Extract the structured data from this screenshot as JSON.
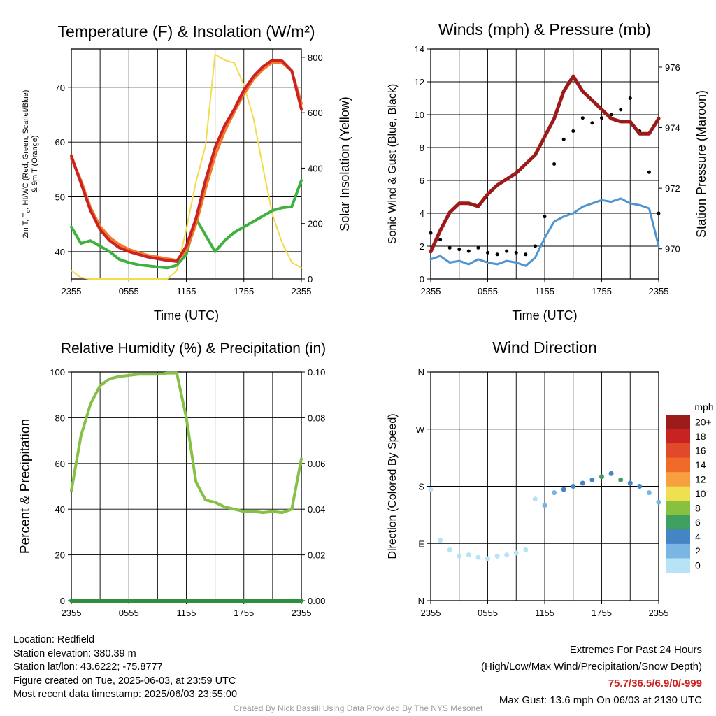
{
  "chart_data": [
    {
      "type": "line",
      "title": "Temperature (F) & Insolation (W/m²)",
      "xlabel": "Time (UTC)",
      "ylabel_left_lines": [
        "2m T, T",
        "d",
        ", HI/WC (Red, Green, Scarlet/Blue)",
        "& 9m T (Orange)"
      ],
      "ylabel_right": "Solar Insolation (Yellow)",
      "x_ticks": [
        "2355",
        "0555",
        "1155",
        "1755",
        "2355"
      ],
      "ylim": [
        35,
        77
      ],
      "y_ticks": [
        40,
        50,
        60,
        70
      ],
      "y2lim": [
        0,
        830
      ],
      "y2_ticks": [
        0,
        200,
        400,
        600,
        800
      ],
      "x_hours": [
        0,
        1,
        2,
        3,
        4,
        5,
        6,
        7,
        8,
        9,
        10,
        11,
        12,
        13,
        14,
        15,
        16,
        17,
        18,
        19,
        20,
        21,
        22,
        23,
        24
      ],
      "series": [
        {
          "color": "#cc2222",
          "axis": "left",
          "y": [
            57.5,
            52.5,
            47.5,
            44,
            42,
            40.7,
            40,
            39.5,
            39,
            38.7,
            38.4,
            38.2,
            41,
            46,
            53,
            59,
            63,
            66,
            69.5,
            72,
            73.8,
            75,
            74.8,
            73,
            66
          ]
        },
        {
          "color": "#f07a2a",
          "axis": "left",
          "y": [
            57,
            53,
            48,
            44.6,
            42.6,
            41.3,
            40.4,
            39.8,
            39.3,
            39,
            38.7,
            38.4,
            40.2,
            45,
            51.5,
            57.5,
            62,
            65.5,
            68.8,
            71.5,
            73.3,
            74.6,
            74.5,
            73,
            67
          ]
        },
        {
          "color": "#3eb23e",
          "axis": "left",
          "y": [
            44.5,
            41.5,
            42,
            41,
            40,
            38.6,
            38,
            37.6,
            37.4,
            37.2,
            37,
            37.5,
            39.5,
            46,
            43,
            40,
            42,
            43.5,
            44.5,
            45.5,
            46.5,
            47.5,
            48,
            48.2,
            53
          ]
        },
        {
          "color": "#f2dc4c",
          "axis": "right",
          "y": [
            30,
            5,
            0,
            0,
            0,
            0,
            0,
            0,
            0,
            0,
            0,
            30,
            180,
            350,
            480,
            810,
            790,
            780,
            700,
            580,
            400,
            230,
            130,
            60,
            40
          ]
        }
      ]
    },
    {
      "type": "line",
      "title": "Winds (mph) & Pressure (mb)",
      "xlabel": "Time (UTC)",
      "ylabel_left": "Sonic Wind & Gust (Blue, Black)",
      "ylabel_right": "Station Pressure (Maroon)",
      "x_ticks": [
        "2355",
        "0555",
        "1155",
        "1755",
        "2355"
      ],
      "ylim": [
        0,
        14
      ],
      "y_ticks": [
        0,
        2,
        4,
        6,
        8,
        10,
        12,
        14
      ],
      "y2lim": [
        969,
        976.6
      ],
      "y2_ticks": [
        970,
        972,
        974,
        976
      ],
      "x_hours": [
        0,
        1,
        2,
        3,
        4,
        5,
        6,
        7,
        8,
        9,
        10,
        11,
        12,
        13,
        14,
        15,
        16,
        17,
        18,
        19,
        20,
        21,
        22,
        23,
        24
      ],
      "series": [
        {
          "name": "Sonic Wind",
          "color": "#4d94d0",
          "axis": "left",
          "y": [
            1.2,
            1.4,
            1.0,
            1.1,
            0.9,
            1.2,
            1.0,
            0.9,
            1.1,
            1.0,
            0.8,
            1.3,
            2.5,
            3.5,
            3.8,
            4.0,
            4.4,
            4.6,
            4.8,
            4.7,
            4.9,
            4.6,
            4.5,
            4.3,
            2.0
          ]
        },
        {
          "name": "Gust",
          "color": "#000000",
          "axis": "left",
          "y": [
            2.8,
            2.4,
            1.9,
            1.8,
            1.7,
            1.9,
            1.6,
            1.5,
            1.7,
            1.6,
            1.5,
            2.0,
            3.8,
            7.0,
            8.5,
            9.0,
            9.8,
            9.5,
            9.8,
            10.0,
            10.3,
            11.0,
            9.0,
            6.5,
            4.0
          ]
        },
        {
          "name": "Station Pressure",
          "color": "#9c1a1a",
          "axis": "right",
          "y": [
            969.9,
            970.6,
            971.2,
            971.5,
            971.5,
            971.4,
            971.8,
            972.1,
            972.3,
            972.5,
            972.8,
            973.1,
            973.7,
            974.3,
            975.2,
            975.7,
            975.2,
            974.9,
            974.6,
            974.3,
            974.2,
            974.2,
            973.8,
            973.8,
            974.3
          ]
        }
      ]
    },
    {
      "type": "line",
      "title": "Relative Humidity (%) & Precipitation (in)",
      "xlabel": "",
      "ylabel_left": "Percent & Precipitation",
      "x_ticks": [
        "2355",
        "0555",
        "1155",
        "1755",
        "2355"
      ],
      "ylim": [
        0,
        100
      ],
      "y_ticks": [
        0,
        20,
        40,
        60,
        80,
        100
      ],
      "y2lim": [
        0,
        0.1
      ],
      "y2_ticks": [
        "0.00",
        "0.02",
        "0.04",
        "0.06",
        "0.08",
        "0.10"
      ],
      "x_hours": [
        0,
        1,
        2,
        3,
        4,
        5,
        6,
        7,
        8,
        9,
        10,
        11,
        12,
        13,
        14,
        15,
        16,
        17,
        18,
        19,
        20,
        21,
        22,
        23,
        24
      ],
      "series": [
        {
          "name": "Relative Humidity",
          "color": "#86c045",
          "axis": "left",
          "y": [
            48,
            72,
            86,
            94,
            97,
            98,
            98.5,
            99,
            99,
            99,
            99.5,
            99.5,
            80,
            52,
            44,
            43,
            41,
            40,
            39,
            39,
            38.5,
            39,
            38.5,
            40,
            62
          ]
        },
        {
          "name": "Precipitation",
          "color": "#2f8f3a",
          "axis": "right",
          "y": [
            0,
            0,
            0,
            0,
            0,
            0,
            0,
            0,
            0,
            0,
            0,
            0,
            0,
            0,
            0,
            0,
            0,
            0,
            0,
            0,
            0,
            0,
            0,
            0,
            0
          ]
        }
      ]
    },
    {
      "type": "scatter",
      "title": "Wind Direction",
      "ylabel_left": "Direction (Colored By Speed)",
      "x_ticks": [
        "2355",
        "0555",
        "1155",
        "1755",
        "2355"
      ],
      "y_ticks": [
        "N",
        "E",
        "S",
        "W",
        "N"
      ],
      "ylim_degrees": [
        0,
        360
      ],
      "x_hours": [
        0,
        1,
        2,
        3,
        4,
        5,
        6,
        7,
        8,
        9,
        10,
        11,
        12,
        13,
        14,
        15,
        16,
        17,
        18,
        19,
        20,
        21,
        22,
        23,
        24
      ],
      "direction_deg": [
        175,
        95,
        80,
        70,
        72,
        68,
        66,
        70,
        72,
        75,
        80,
        160,
        150,
        170,
        175,
        180,
        185,
        190,
        195,
        200,
        190,
        185,
        180,
        170,
        155
      ],
      "speed_mph": [
        1,
        1,
        1,
        1,
        1,
        1,
        1,
        1,
        1,
        1,
        1,
        1,
        2,
        3,
        4,
        4,
        5,
        4,
        6,
        5,
        6,
        5,
        4,
        3,
        2
      ],
      "colorbar": {
        "unit": "mph",
        "labels": [
          "20+",
          "18",
          "16",
          "14",
          "12",
          "10",
          "8",
          "6",
          "4",
          "2",
          "0"
        ],
        "colors": [
          "#9c1c1c",
          "#c92222",
          "#e04a2a",
          "#f06a2a",
          "#f8a040",
          "#eee050",
          "#88c040",
          "#3ea060",
          "#4585c5",
          "#7ab6e4",
          "#b8e2f6"
        ]
      }
    }
  ],
  "info": {
    "location": "Location: Redfield",
    "elevation": "Station elevation: 380.39 m",
    "latlon": "Station lat/lon: 43.6222; -75.8777",
    "created": "Figure created on Tue, 2025-06-03, at 23:59 UTC",
    "recent": "Most recent data timestamp: 2025/06/03 23:55:00"
  },
  "extremes": {
    "title": "Extremes For Past 24 Hours",
    "subtitle": "(High/Low/Max Wind/Precipitation/Snow Depth)",
    "values": "75.7/36.5/6.9/0/-999",
    "gust": "Max Gust: 13.6 mph On 06/03 at 2130 UTC"
  },
  "credit": "Created By Nick Bassill Using Data Provided By The NYS Mesonet"
}
